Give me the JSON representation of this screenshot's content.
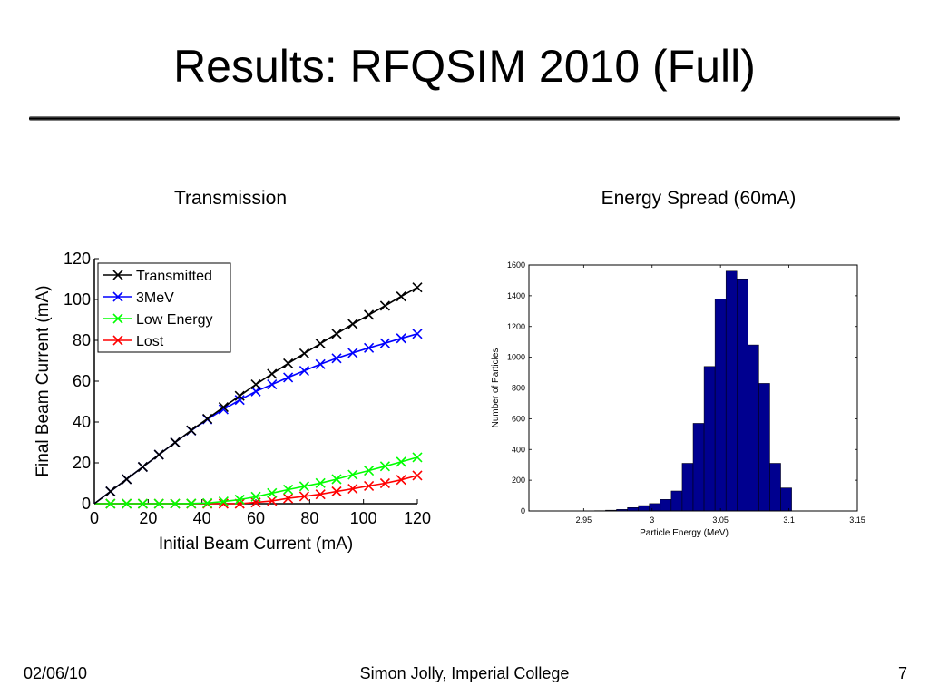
{
  "slide": {
    "title": "Results: RFQSIM 2010 (Full)",
    "footer_left": "02/06/10",
    "footer_center": "Simon Jolly, Imperial College",
    "footer_right": "7"
  },
  "chart_data": [
    {
      "type": "line",
      "caption": "Transmission",
      "xlabel": "Initial Beam Current (mA)",
      "ylabel": "Final Beam Current (mA)",
      "xlim": [
        0,
        120
      ],
      "ylim": [
        0,
        120
      ],
      "xticks": [
        0,
        20,
        40,
        60,
        80,
        100,
        120
      ],
      "yticks": [
        0,
        20,
        40,
        60,
        80,
        100,
        120
      ],
      "legend_position": "top-left",
      "x": [
        0,
        6,
        12,
        18,
        24,
        30,
        36,
        42,
        48,
        54,
        60,
        66,
        72,
        78,
        84,
        90,
        96,
        102,
        108,
        114,
        120
      ],
      "series": [
        {
          "name": "Transmitted",
          "color": "#000000",
          "values": [
            0,
            6,
            12,
            18,
            24,
            30,
            35.9,
            41.6,
            47.3,
            52.8,
            58.4,
            63.6,
            68.7,
            73.6,
            78.4,
            83.2,
            88,
            92.5,
            96.9,
            101.5,
            105.9
          ]
        },
        {
          "name": "3MeV",
          "color": "#0000ff",
          "values": [
            0,
            6,
            12,
            18,
            24,
            30,
            35.8,
            41.3,
            46.2,
            50.8,
            55,
            58.4,
            61.8,
            65.1,
            68.3,
            71.2,
            73.8,
            76.3,
            78.6,
            81,
            83.2
          ]
        },
        {
          "name": "Low Energy",
          "color": "#00ff00",
          "values": [
            0,
            0,
            0,
            0,
            0,
            0,
            0.1,
            0.3,
            1.1,
            2,
            3.4,
            5.2,
            6.9,
            8.5,
            10.1,
            12,
            14.2,
            16.2,
            18.3,
            20.5,
            22.7
          ]
        },
        {
          "name": "Lost",
          "color": "#ff0000",
          "values": [
            0,
            0,
            0,
            0,
            0,
            0,
            0,
            0,
            0,
            0,
            0.6,
            1.4,
            2.6,
            3.6,
            4.6,
            6,
            7.3,
            8.7,
            10,
            11.7,
            13.8
          ]
        }
      ]
    },
    {
      "type": "bar",
      "subtype": "histogram",
      "caption": "Energy Spread (60mA)",
      "xlabel": "Particle Energy (MeV)",
      "ylabel": "Number of Particles",
      "xlim": [
        2.91,
        3.15
      ],
      "ylim": [
        0,
        1600
      ],
      "xticks": [
        2.95,
        3,
        3.05,
        3.1,
        3.15
      ],
      "yticks": [
        0,
        200,
        400,
        600,
        800,
        1000,
        1200,
        1400,
        1600
      ],
      "bar_color": "#00008f",
      "bin_width": 0.008,
      "bin_starts": [
        2.958,
        2.966,
        2.974,
        2.982,
        2.99,
        2.998,
        3.006,
        3.014,
        3.022,
        3.03,
        3.038,
        3.046,
        3.054,
        3.062,
        3.07,
        3.078,
        3.086,
        3.094
      ],
      "values": [
        2,
        5,
        10,
        22,
        35,
        48,
        75,
        130,
        310,
        570,
        940,
        1380,
        1560,
        1510,
        1080,
        830,
        310,
        150
      ]
    }
  ]
}
